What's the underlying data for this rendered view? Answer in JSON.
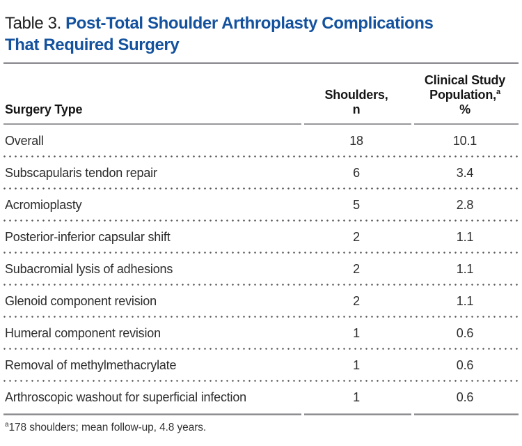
{
  "title": {
    "prefix": "Table 3. ",
    "line1": "Post-Total Shoulder Arthroplasty Complications",
    "line2": "That Required Surgery"
  },
  "colors": {
    "title_blue": "#14529e",
    "rule_gray": "#8e8e93",
    "dot_gray": "#59595d"
  },
  "table": {
    "header": {
      "col1": "Surgery Type",
      "col2_line1": "Shoulders,",
      "col2_line2": "n",
      "col3_line1": "Clinical Study",
      "col3_line2": "Population,",
      "col3_sup": "a",
      "col3_line3": "%"
    },
    "rows": [
      {
        "type": "Overall",
        "n": "18",
        "pct": "10.1"
      },
      {
        "type": "Subscapularis tendon repair",
        "n": "6",
        "pct": "3.4"
      },
      {
        "type": "Acromioplasty",
        "n": "5",
        "pct": "2.8"
      },
      {
        "type": "Posterior-inferior capsular shift",
        "n": "2",
        "pct": "1.1"
      },
      {
        "type": "Subacromial lysis of adhesions",
        "n": "2",
        "pct": "1.1"
      },
      {
        "type": "Glenoid component revision",
        "n": "2",
        "pct": "1.1"
      },
      {
        "type": "Humeral component revision",
        "n": "1",
        "pct": "0.6"
      },
      {
        "type": "Removal of methylmethacrylate",
        "n": "1",
        "pct": "0.6"
      },
      {
        "type": "Arthroscopic washout for superficial infection",
        "n": "1",
        "pct": "0.6"
      }
    ]
  },
  "footnote": {
    "sup": "a",
    "text": "178 shoulders; mean follow-up, 4.8 years."
  }
}
